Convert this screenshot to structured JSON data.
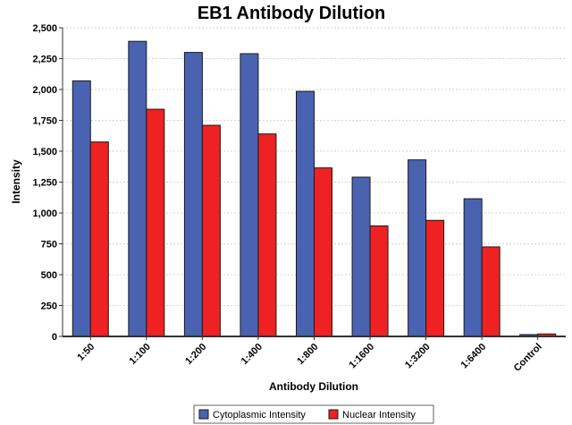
{
  "chart_data": {
    "type": "bar",
    "title": "EB1 Antibody Dilution",
    "xlabel": "Antibody Dilution",
    "ylabel": "Intensity",
    "categories": [
      "1:50",
      "1:100",
      "1:200",
      "1:400",
      "1:800",
      "1:1600",
      "1:3200",
      "1:6400",
      "Control"
    ],
    "series": [
      {
        "name": "Cytoplasmic Intensity",
        "color": "#4a63b0",
        "values": [
          2070,
          2390,
          2300,
          2290,
          1985,
          1290,
          1430,
          1115,
          15
        ]
      },
      {
        "name": "Nuclear Intensity",
        "color": "#ee2222",
        "values": [
          1575,
          1840,
          1710,
          1640,
          1365,
          895,
          940,
          725,
          20
        ]
      }
    ],
    "ylim": [
      0,
      2500
    ],
    "yticks": [
      0,
      250,
      500,
      750,
      1000,
      1250,
      1500,
      1750,
      2000,
      2250,
      2500
    ],
    "ytick_labels": [
      "0",
      "250",
      "500",
      "750",
      "1,000",
      "1,250",
      "1,500",
      "1,750",
      "2,000",
      "2,250",
      "2,500"
    ],
    "grid": true,
    "legend_position": "bottom"
  }
}
